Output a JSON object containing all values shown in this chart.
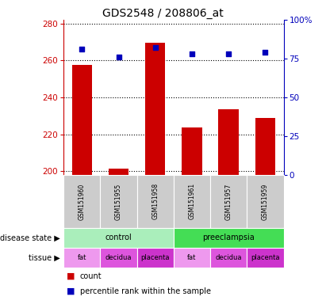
{
  "title": "GDS2548 / 208806_at",
  "samples": [
    "GSM151960",
    "GSM151955",
    "GSM151958",
    "GSM151961",
    "GSM151957",
    "GSM151959"
  ],
  "bar_values": [
    257.5,
    201.5,
    269.5,
    223.5,
    233.5,
    229.0
  ],
  "percentile_values": [
    81,
    76,
    82,
    78,
    78,
    79
  ],
  "ylim_left": [
    198,
    282
  ],
  "ylim_right": [
    0,
    100
  ],
  "yticks_left": [
    200,
    220,
    240,
    260,
    280
  ],
  "yticks_right": [
    0,
    25,
    50,
    75,
    100
  ],
  "bar_color": "#cc0000",
  "dot_color": "#0000bb",
  "disease_state": [
    {
      "label": "control",
      "span": [
        0,
        3
      ],
      "color": "#aaeebb"
    },
    {
      "label": "preeclampsia",
      "span": [
        3,
        6
      ],
      "color": "#44dd55"
    }
  ],
  "tissue": [
    {
      "label": "fat",
      "span": [
        0,
        1
      ],
      "color": "#ee99ee"
    },
    {
      "label": "decidua",
      "span": [
        1,
        2
      ],
      "color": "#dd55dd"
    },
    {
      "label": "placenta",
      "span": [
        2,
        3
      ],
      "color": "#cc33cc"
    },
    {
      "label": "fat",
      "span": [
        3,
        4
      ],
      "color": "#ee99ee"
    },
    {
      "label": "decidua",
      "span": [
        4,
        5
      ],
      "color": "#dd55dd"
    },
    {
      "label": "placenta",
      "span": [
        5,
        6
      ],
      "color": "#cc33cc"
    }
  ],
  "legend_count_color": "#cc0000",
  "legend_pct_color": "#0000bb",
  "axis_left_color": "#cc0000",
  "axis_right_color": "#0000bb",
  "sample_box_color": "#cccccc",
  "background_color": "#ffffff"
}
